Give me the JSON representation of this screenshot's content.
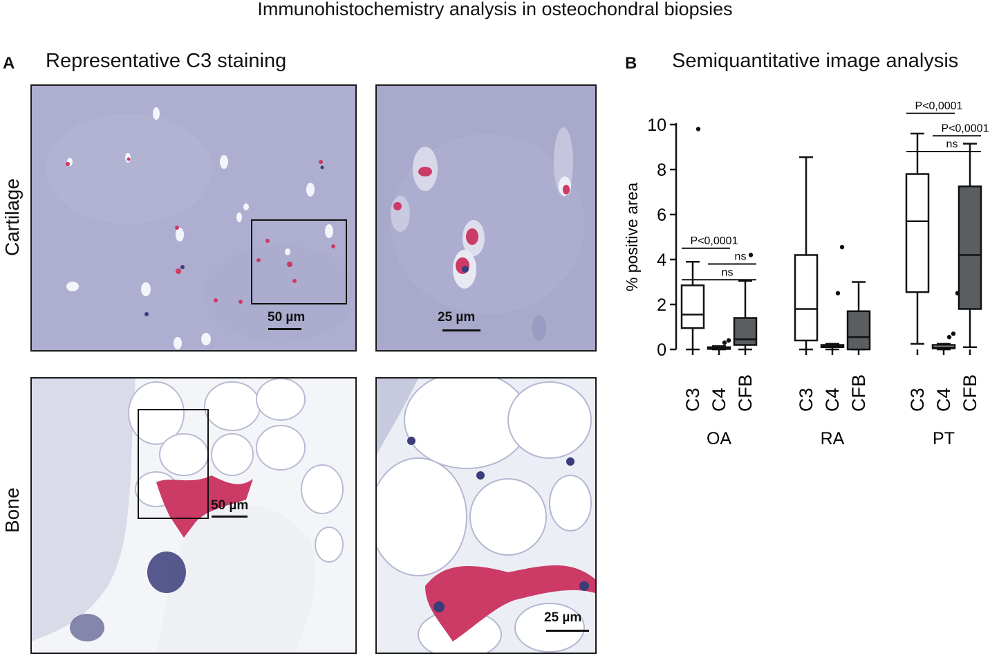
{
  "figure": {
    "title": "Immunohistochemistry analysis in osteochondral biopsies",
    "panel_a": {
      "letter": "A",
      "title": "Representative C3 staining",
      "row_labels": {
        "cartilage": "Cartilage",
        "bone": "Bone"
      },
      "scale_bars": {
        "cartilage_low": "50 µm",
        "cartilage_high": "25 µm",
        "bone_low": "50 µm",
        "bone_high": "25 µm"
      }
    },
    "panel_b": {
      "letter": "B",
      "title": "Semiquantitative image analysis"
    }
  },
  "colors": {
    "cartilage_bg": "#aeaed0",
    "bone_bg": "#f4f5f8",
    "stain_red": "#cc3a66",
    "nucleus": "#3b3c7a",
    "box_fill_cfb": "#5a5e60",
    "box_fill_open": "#ffffff"
  },
  "chart_data": {
    "type": "box",
    "ylabel": "% positive area",
    "ylim": [
      0,
      10
    ],
    "yticks": [
      0,
      2,
      4,
      6,
      8,
      10
    ],
    "groups": [
      {
        "name": "OA",
        "boxes": [
          {
            "label": "C3",
            "min": 0.0,
            "q1": 0.95,
            "median": 1.55,
            "q3": 2.85,
            "max": 3.9,
            "outliers": [
              9.8
            ],
            "fill": "open"
          },
          {
            "label": "C4",
            "min": 0.0,
            "q1": 0.02,
            "median": 0.05,
            "q3": 0.1,
            "max": 0.15,
            "outliers": [
              0.3,
              0.4
            ],
            "fill": "open"
          },
          {
            "label": "CFB",
            "min": 0.0,
            "q1": 0.2,
            "median": 0.45,
            "q3": 1.4,
            "max": 3.05,
            "outliers": [
              4.2
            ],
            "fill": "dark"
          }
        ]
      },
      {
        "name": "RA",
        "boxes": [
          {
            "label": "C3",
            "min": 0.0,
            "q1": 0.4,
            "median": 1.8,
            "q3": 4.2,
            "max": 8.55,
            "outliers": [],
            "fill": "open"
          },
          {
            "label": "C4",
            "min": 0.0,
            "q1": 0.1,
            "median": 0.15,
            "q3": 0.2,
            "max": 0.25,
            "outliers": [
              2.5,
              4.55
            ],
            "fill": "open"
          },
          {
            "label": "CFB",
            "min": 0.0,
            "q1": 0.0,
            "median": 0.55,
            "q3": 1.7,
            "max": 3.0,
            "outliers": [],
            "fill": "dark"
          }
        ]
      },
      {
        "name": "PT",
        "boxes": [
          {
            "label": "C3",
            "min": 0.25,
            "q1": 2.55,
            "median": 5.7,
            "q3": 7.8,
            "max": 9.6,
            "outliers": [],
            "fill": "open"
          },
          {
            "label": "C4",
            "min": 0.0,
            "q1": 0.05,
            "median": 0.1,
            "q3": 0.2,
            "max": 0.25,
            "outliers": [
              0.55,
              0.7,
              2.5
            ],
            "fill": "open"
          },
          {
            "label": "CFB",
            "min": 0.1,
            "q1": 1.8,
            "median": 4.2,
            "q3": 7.25,
            "max": 9.15,
            "outliers": [],
            "fill": "dark"
          }
        ]
      }
    ],
    "annotations": [
      {
        "group": 0,
        "from": 0,
        "to": 1,
        "y": 4.5,
        "label": "P<0,0001"
      },
      {
        "group": 0,
        "from": 0,
        "to": 2,
        "y": 3.1,
        "label": "ns"
      },
      {
        "group": 0,
        "from": 1,
        "to": 2,
        "y": 3.8,
        "label": "ns"
      },
      {
        "group": 2,
        "from": 0,
        "to": 1,
        "y": 10.5,
        "label": "P<0,0001"
      },
      {
        "group": 2,
        "from": 1,
        "to": 2,
        "y": 9.5,
        "label": "P<0,0001"
      },
      {
        "group": 2,
        "from": 0,
        "to": 2,
        "y": 8.8,
        "label": "ns"
      }
    ]
  }
}
